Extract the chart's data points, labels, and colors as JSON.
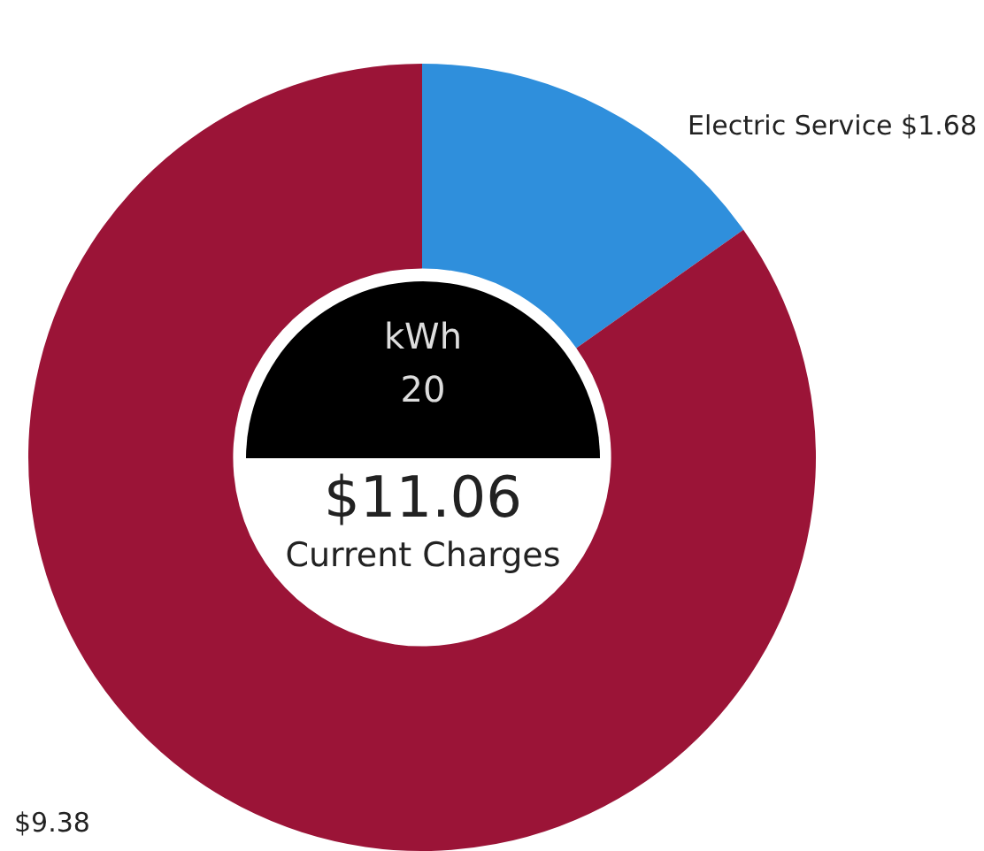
{
  "chart_data": {
    "type": "donut",
    "categories": [
      "Electric Service",
      null
    ],
    "values": [
      1.68,
      9.38
    ],
    "colors": [
      "#2f8fdc",
      "#9b1437"
    ],
    "value_labels": [
      "$1.68",
      "$9.38"
    ],
    "annotations": [
      "kWh",
      "20",
      "$11.06",
      "Current Charges"
    ],
    "legend": false
  }
}
